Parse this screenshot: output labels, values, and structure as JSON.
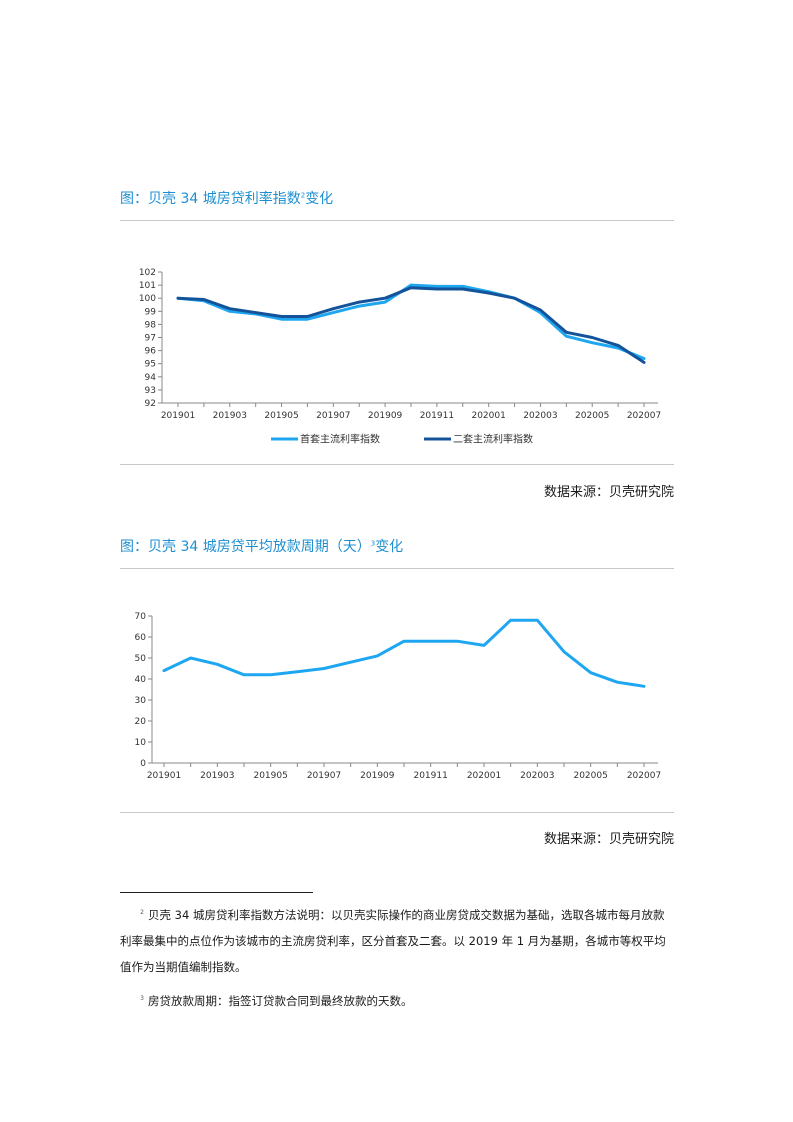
{
  "figures": [
    {
      "title": "图：贝壳 34 城房贷利率指数",
      "title_note_mark": "2",
      "title_suffix": "变化",
      "source": "数据来源：贝壳研究院"
    },
    {
      "title": "图：贝壳 34 城房贷平均放款周期（天）",
      "title_note_mark": "3",
      "title_suffix": "变化",
      "source": "数据来源：贝壳研究院"
    }
  ],
  "footnotes": [
    {
      "mark": "2",
      "text": "贝壳 34 城房贷利率指数方法说明：以贝壳实际操作的商业房贷成交数据为基础，选取各城市每月放款利率最集中的点位作为该城市的主流房贷利率，区分首套及二套。以 2019 年 1 月为基期，各城市等权平均值作为当期值编制指数。"
    },
    {
      "mark": "3",
      "text": "房贷放款周期：指签订贷款合同到最终放款的天数。"
    }
  ],
  "chart_data": [
    {
      "type": "line",
      "x": [
        "201901",
        "201902",
        "201903",
        "201904",
        "201905",
        "201906",
        "201907",
        "201908",
        "201909",
        "201910",
        "201911",
        "201912",
        "202001",
        "202002",
        "202003",
        "202004",
        "202005",
        "202006",
        "202007"
      ],
      "x_tick_labels": [
        "201901",
        "201903",
        "201905",
        "201907",
        "201909",
        "201911",
        "202001",
        "202003",
        "202005",
        "202007"
      ],
      "ylim": [
        92,
        102
      ],
      "y_ticks": [
        92,
        93,
        94,
        95,
        96,
        97,
        98,
        99,
        100,
        101,
        102
      ],
      "series": [
        {
          "name": "首套主流利率指数",
          "color": "#1ea7f0",
          "values": [
            100.0,
            99.8,
            99.0,
            98.8,
            98.4,
            98.4,
            98.9,
            99.4,
            99.7,
            101.0,
            100.9,
            100.9,
            100.5,
            100.0,
            98.9,
            97.1,
            96.6,
            96.2,
            95.4
          ]
        },
        {
          "name": "二套主流利率指数",
          "color": "#14539a",
          "values": [
            100.0,
            99.9,
            99.2,
            98.9,
            98.6,
            98.6,
            99.2,
            99.7,
            100.0,
            100.8,
            100.7,
            100.7,
            100.4,
            100.0,
            99.1,
            97.4,
            97.0,
            96.4,
            95.1
          ]
        }
      ],
      "legend_position": "bottom",
      "grid": false
    },
    {
      "type": "line",
      "x": [
        "201901",
        "201902",
        "201903",
        "201904",
        "201905",
        "201906",
        "201907",
        "201908",
        "201909",
        "201910",
        "201911",
        "201912",
        "202001",
        "202002",
        "202003",
        "202004",
        "202005",
        "202006",
        "202007"
      ],
      "x_tick_labels": [
        "201901",
        "201903",
        "201905",
        "201907",
        "201909",
        "201911",
        "202001",
        "202003",
        "202005",
        "202007"
      ],
      "ylim": [
        0,
        70
      ],
      "y_ticks": [
        0,
        10,
        20,
        30,
        40,
        50,
        60,
        70
      ],
      "series": [
        {
          "color": "#1ea7f0",
          "values": [
            44,
            50,
            47,
            42,
            42,
            43.5,
            45,
            48,
            51,
            58,
            58,
            58,
            56,
            68,
            68,
            53,
            43,
            38.5,
            36.5
          ]
        }
      ],
      "legend_position": "none",
      "grid": false
    }
  ]
}
